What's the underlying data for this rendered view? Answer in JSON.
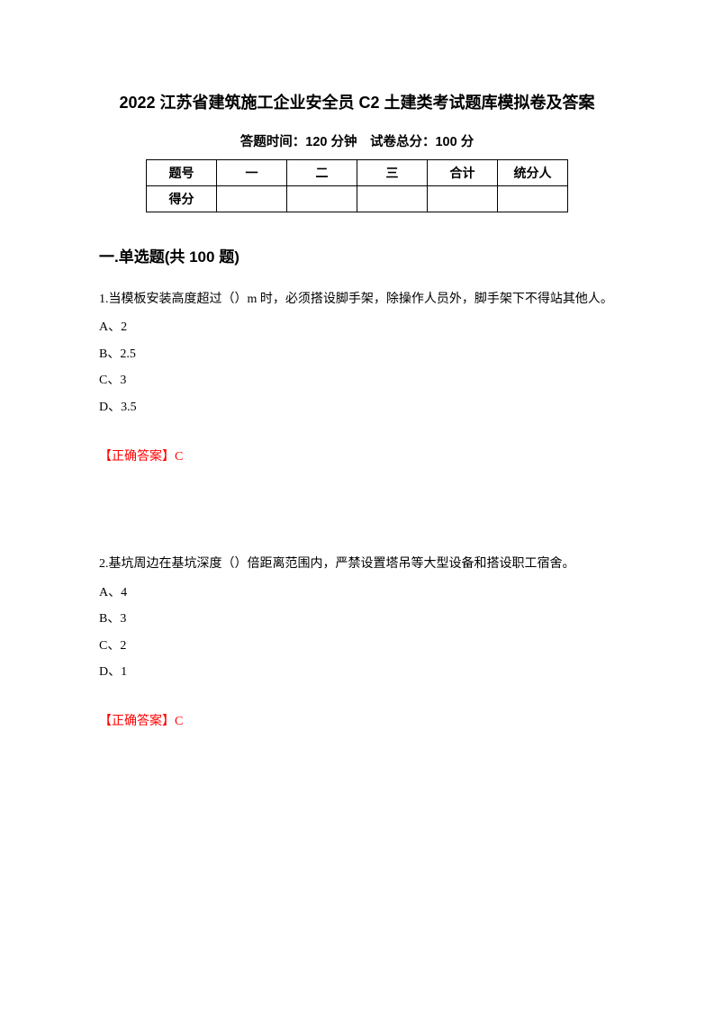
{
  "title": "2022 江苏省建筑施工企业安全员 C2 土建类考试题库模拟卷及答案",
  "subtitle": "答题时间：120 分钟　试卷总分：100 分",
  "table": {
    "row1": [
      "题号",
      "一",
      "二",
      "三",
      "合计",
      "统分人"
    ],
    "row2_label": "得分"
  },
  "section_heading": "一.单选题(共 100 题)",
  "questions": [
    {
      "text": "1.当模板安装高度超过（）m 时，必须搭设脚手架，除操作人员外，脚手架下不得站其他人。",
      "options": [
        "A、2",
        "B、2.5",
        "C、3",
        "D、3.5"
      ],
      "answer": "【正确答案】C"
    },
    {
      "text": "2.基坑周边在基坑深度（）倍距离范围内，严禁设置塔吊等大型设备和搭设职工宿舍。",
      "options": [
        "A、4",
        "B、3",
        "C、2",
        "D、1"
      ],
      "answer": "【正确答案】C"
    }
  ],
  "colors": {
    "text": "#000000",
    "answer": "#ff0000",
    "background": "#ffffff",
    "border": "#000000"
  }
}
